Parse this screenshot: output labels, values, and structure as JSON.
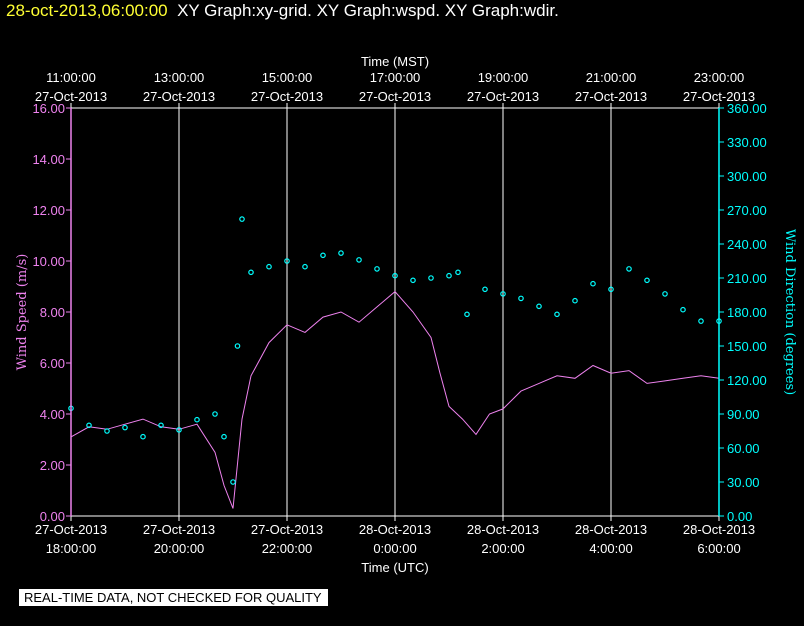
{
  "header": {
    "timestamp": "28-oct-2013,06:00:00",
    "graphs": "XY Graph:xy-grid.  XY Graph:wspd.  XY Graph:wdir."
  },
  "notice": "REAL-TIME DATA, NOT CHECKED FOR QUALITY",
  "colors": {
    "background": "#000000",
    "grid": "#ffffff",
    "wind_speed": "#ee82ee",
    "wind_direction": "#00ffff",
    "header_time": "#ffff33"
  },
  "chart_data": {
    "type": "line",
    "title": "",
    "xlabel": "Time (UTC)",
    "x2label": "Time (MST)",
    "ylabel": "Wind Speed (m/s)",
    "y2label": "Wind Direction (degrees)",
    "xlim": [
      "2013-10-27 18:00",
      "2013-10-28 06:00"
    ],
    "ylim": [
      0,
      16
    ],
    "y2lim": [
      0,
      360
    ],
    "grid": true,
    "x_ticks_utc": [
      {
        "date": "27-Oct-2013",
        "time": "18:00:00"
      },
      {
        "date": "27-Oct-2013",
        "time": "20:00:00"
      },
      {
        "date": "27-Oct-2013",
        "time": "22:00:00"
      },
      {
        "date": "28-Oct-2013",
        "time": "0:00:00"
      },
      {
        "date": "28-Oct-2013",
        "time": "2:00:00"
      },
      {
        "date": "28-Oct-2013",
        "time": "4:00:00"
      },
      {
        "date": "28-Oct-2013",
        "time": "6:00:00"
      }
    ],
    "x_ticks_mst": [
      {
        "time": "11:00:00",
        "date": "27-Oct-2013"
      },
      {
        "time": "13:00:00",
        "date": "27-Oct-2013"
      },
      {
        "time": "15:00:00",
        "date": "27-Oct-2013"
      },
      {
        "time": "17:00:00",
        "date": "27-Oct-2013"
      },
      {
        "time": "19:00:00",
        "date": "27-Oct-2013"
      },
      {
        "time": "21:00:00",
        "date": "27-Oct-2013"
      },
      {
        "time": "23:00:00",
        "date": "27-Oct-2013"
      }
    ],
    "y_ticks": [
      "0.00",
      "2.00",
      "4.00",
      "6.00",
      "8.00",
      "10.00",
      "12.00",
      "14.00",
      "16.00"
    ],
    "y2_ticks": [
      "0.00",
      "30.00",
      "60.00",
      "90.00",
      "120.00",
      "150.00",
      "180.00",
      "210.00",
      "240.00",
      "270.00",
      "300.00",
      "330.00",
      "360.00"
    ],
    "series": [
      {
        "name": "Wind Speed (m/s)",
        "style": "line",
        "x": [
          "2013-10-27 18:00",
          "2013-10-27 18:20",
          "2013-10-27 18:40",
          "2013-10-27 19:00",
          "2013-10-27 19:20",
          "2013-10-27 19:40",
          "2013-10-27 20:00",
          "2013-10-27 20:20",
          "2013-10-27 20:40",
          "2013-10-27 20:50",
          "2013-10-27 21:00",
          "2013-10-27 21:10",
          "2013-10-27 21:20",
          "2013-10-27 21:40",
          "2013-10-27 22:00",
          "2013-10-27 22:20",
          "2013-10-27 22:40",
          "2013-10-27 23:00",
          "2013-10-27 23:20",
          "2013-10-27 23:40",
          "2013-10-28 00:00",
          "2013-10-28 00:20",
          "2013-10-28 00:40",
          "2013-10-28 00:50",
          "2013-10-28 01:00",
          "2013-10-28 01:15",
          "2013-10-28 01:30",
          "2013-10-28 01:45",
          "2013-10-28 02:00",
          "2013-10-28 02:20",
          "2013-10-28 02:40",
          "2013-10-28 03:00",
          "2013-10-28 03:20",
          "2013-10-28 03:40",
          "2013-10-28 04:00",
          "2013-10-28 04:20",
          "2013-10-28 04:40",
          "2013-10-28 05:00",
          "2013-10-28 05:20",
          "2013-10-28 05:40",
          "2013-10-28 06:00"
        ],
        "values": [
          3.1,
          3.5,
          3.4,
          3.6,
          3.8,
          3.5,
          3.4,
          3.6,
          2.5,
          1.2,
          0.3,
          3.8,
          5.5,
          6.8,
          7.5,
          7.2,
          7.8,
          8.0,
          7.6,
          8.2,
          8.8,
          8.0,
          7.0,
          5.6,
          4.3,
          3.8,
          3.2,
          4.0,
          4.2,
          4.9,
          5.2,
          5.5,
          5.4,
          5.9,
          5.6,
          5.7,
          5.2,
          5.3,
          5.4,
          5.5,
          5.4
        ]
      },
      {
        "name": "Wind Direction (degrees)",
        "style": "points",
        "x": [
          "2013-10-27 18:00",
          "2013-10-27 18:20",
          "2013-10-27 18:40",
          "2013-10-27 19:00",
          "2013-10-27 19:20",
          "2013-10-27 19:40",
          "2013-10-27 20:00",
          "2013-10-27 20:20",
          "2013-10-27 20:40",
          "2013-10-27 20:50",
          "2013-10-27 21:00",
          "2013-10-27 21:05",
          "2013-10-27 21:10",
          "2013-10-27 21:20",
          "2013-10-27 21:40",
          "2013-10-27 22:00",
          "2013-10-27 22:20",
          "2013-10-27 22:40",
          "2013-10-27 23:00",
          "2013-10-27 23:20",
          "2013-10-27 23:40",
          "2013-10-28 00:00",
          "2013-10-28 00:20",
          "2013-10-28 00:40",
          "2013-10-28 01:00",
          "2013-10-28 01:10",
          "2013-10-28 01:20",
          "2013-10-28 01:40",
          "2013-10-28 02:00",
          "2013-10-28 02:20",
          "2013-10-28 02:40",
          "2013-10-28 03:00",
          "2013-10-28 03:20",
          "2013-10-28 03:40",
          "2013-10-28 04:00",
          "2013-10-28 04:20",
          "2013-10-28 04:40",
          "2013-10-28 05:00",
          "2013-10-28 05:20",
          "2013-10-28 05:40",
          "2013-10-28 06:00"
        ],
        "values": [
          95,
          80,
          75,
          78,
          70,
          80,
          76,
          85,
          90,
          70,
          30,
          150,
          262,
          215,
          220,
          225,
          220,
          230,
          232,
          226,
          218,
          212,
          208,
          210,
          212,
          215,
          178,
          200,
          196,
          192,
          185,
          178,
          190,
          205,
          200,
          218,
          208,
          196,
          182,
          172,
          172
        ]
      }
    ]
  }
}
